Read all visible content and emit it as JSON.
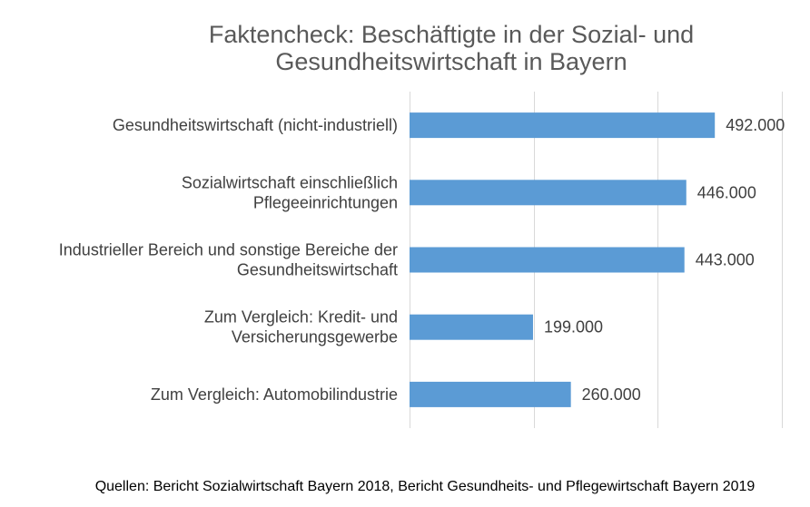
{
  "chart_data": {
    "type": "bar",
    "orientation": "horizontal",
    "title": "Faktencheck: Beschäftigte in der Sozial- und Gesundheitswirtschaft in Bayern",
    "title_lines": [
      "Faktencheck: Beschäftigte in der Sozial- und",
      "Gesundheitswirtschaft in Bayern"
    ],
    "categories": [
      "Gesundheitswirtschaft (nicht-industriell)",
      "Sozialwirtschaft einschließlich Pflegeeinrichtungen",
      "Industrieller Bereich und sonstige Bereiche der Gesundheitswirtschaft",
      "Zum Vergleich: Kredit- und Versicherungsgewerbe",
      "Zum Vergleich: Automobilindustrie"
    ],
    "category_lines": [
      [
        "Gesundheitswirtschaft (nicht-industriell)"
      ],
      [
        "Sozialwirtschaft einschließlich",
        "Pflegeeinrichtungen"
      ],
      [
        "Industrieller Bereich und sonstige Bereiche der",
        "Gesundheitswirtschaft"
      ],
      [
        "Zum Vergleich: Kredit- und",
        "Versicherungsgewerbe"
      ],
      [
        "Zum Vergleich: Automobilindustrie"
      ]
    ],
    "values": [
      492000,
      446000,
      443000,
      199000,
      260000
    ],
    "data_labels": [
      "492.000",
      "446.000",
      "443.000",
      "199.000",
      "260.000"
    ],
    "xlim": [
      0,
      600000
    ],
    "grid": true,
    "grid_lines": "vertical",
    "legend": "none",
    "bar_color": "#5B9BD5",
    "grid_color": "#D9D9D9",
    "axis_tick_labels_shown": false
  },
  "footer": {
    "source": "Quellen: Bericht Sozialwirtschaft Bayern 2018, Bericht Gesundheits- und Pflegewirtschaft Bayern 2019"
  }
}
